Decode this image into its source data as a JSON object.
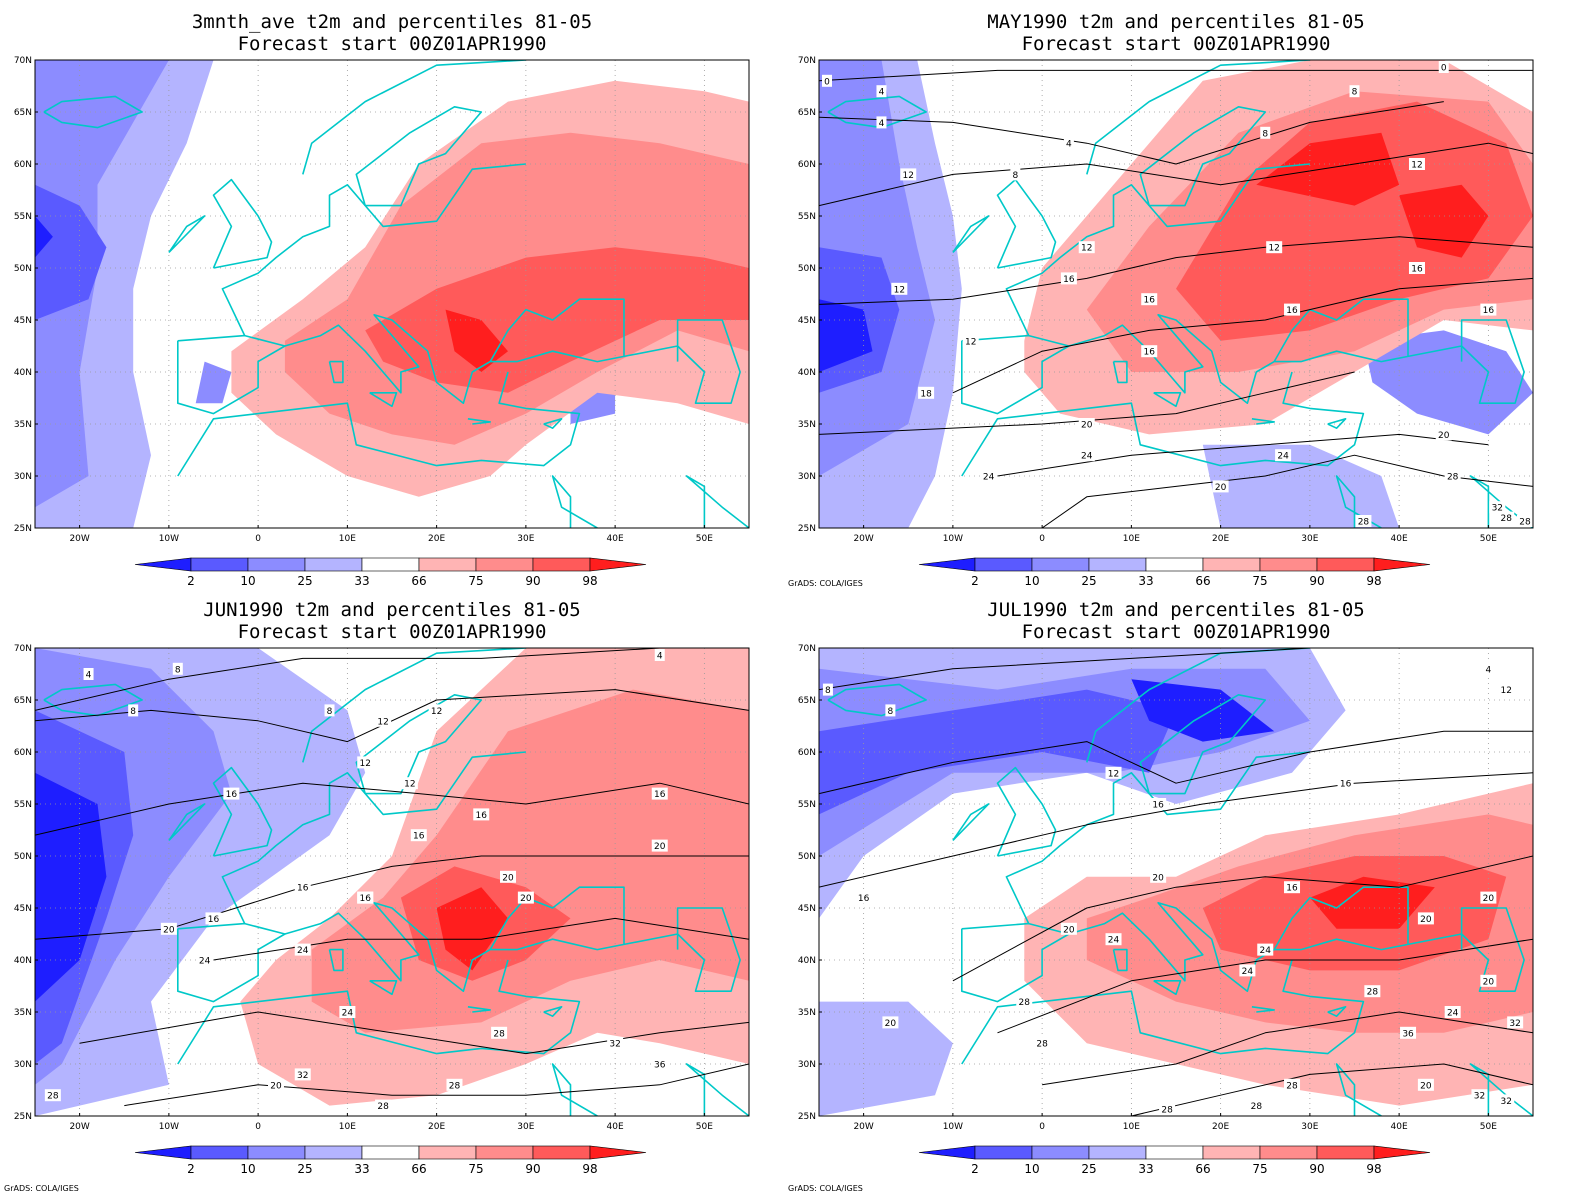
{
  "colors": {
    "blue_2": "#1e1eff",
    "blue_10": "#5a5aff",
    "blue_25": "#8c8cff",
    "blue_33": "#b4b4ff",
    "red_66": "#ffb4b4",
    "red_75": "#ff8c8c",
    "red_90": "#ff5a5a",
    "red_98": "#ff1e1e",
    "coast": "#00c8c8",
    "contour": "#000000"
  },
  "axes": {
    "lat_labels": [
      "70N",
      "65N",
      "60N",
      "55N",
      "50N",
      "45N",
      "40N",
      "35N",
      "30N",
      "25N"
    ],
    "lon_labels": [
      "20W",
      "10W",
      "0",
      "10E",
      "20E",
      "30E",
      "40E",
      "50E"
    ]
  },
  "colorbar": {
    "labels": [
      "2",
      "10",
      "25",
      "33",
      "66",
      "75",
      "90",
      "98"
    ]
  },
  "credit_text": "GrADS: COLA/IGES",
  "panels": [
    {
      "title": "3mnth_ave t2m and percentiles 81-05",
      "subtitle": "Forecast start 00Z01APR1990",
      "contour_labels": []
    },
    {
      "title": "MAY1990 t2m and percentiles 81-05",
      "subtitle": "Forecast start 00Z01APR1990",
      "contour_labels": [
        "0",
        "4",
        "0",
        "4",
        "4",
        "8",
        "8",
        "8",
        "12",
        "12",
        "12",
        "12",
        "12",
        "16",
        "16",
        "16",
        "16",
        "16",
        "12",
        "16",
        "18",
        "20",
        "20",
        "24",
        "24",
        "24",
        "20",
        "28",
        "28",
        "32",
        "28",
        "28"
      ]
    },
    {
      "title": "JUN1990 t2m and percentiles 81-05",
      "subtitle": "Forecast start 00Z01APR1990",
      "contour_labels": [
        "4",
        "8",
        "4",
        "8",
        "8",
        "12",
        "12",
        "12",
        "12",
        "16",
        "16",
        "16",
        "16",
        "16",
        "16",
        "20",
        "20",
        "20",
        "16",
        "16",
        "20",
        "24",
        "24",
        "24",
        "28",
        "32",
        "20",
        "36",
        "32",
        "28",
        "28",
        "28"
      ]
    },
    {
      "title": "JUL1990 t2m and percentiles 81-05",
      "subtitle": "Forecast start 00Z01APR1990",
      "contour_labels": [
        "8",
        "4",
        "8",
        "12",
        "12",
        "16",
        "16",
        "16",
        "20",
        "16",
        "20",
        "20",
        "24",
        "20",
        "24",
        "24",
        "28",
        "28",
        "20",
        "24",
        "20",
        "28",
        "28",
        "32",
        "36",
        "28",
        "28",
        "32",
        "32",
        "20"
      ]
    }
  ]
}
